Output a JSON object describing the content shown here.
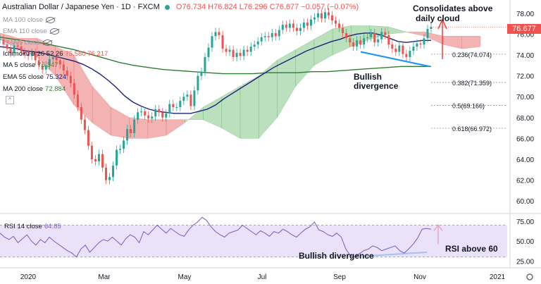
{
  "header": {
    "title": "Australian Dollar / Japanese Yen · 1D · FXCM",
    "ohlc": "O76.734 H76.824 L76.296 C76.677 −0.057 (−0.07%)"
  },
  "indicators": [
    {
      "label": "MA 100 close",
      "value": "",
      "hidden": true
    },
    {
      "label": "EMA 110 close",
      "value": "",
      "hidden": true
    },
    {
      "label": "EMA 5 close",
      "value": "",
      "hidden": true
    },
    {
      "label": "Ichimoku 9 26 52 26",
      "value": "75.580  76.217",
      "hidden": false
    },
    {
      "label": "MA 5 close",
      "value": "76.347",
      "hidden": false
    },
    {
      "label": "EMA 55 close",
      "value": "75.324",
      "hidden": false
    },
    {
      "label": "MA 200 close",
      "value": "72.884",
      "hidden": false
    }
  ],
  "price_tag": "76.677",
  "annotations": {
    "consolidates": [
      "Consolidates above",
      "daily cloud"
    ],
    "bullish_div_price": [
      "Bullish",
      "divergence"
    ],
    "bullish_div_rsi": "Bullish divergence",
    "rsi_above": "RSI above 60"
  },
  "rsi_label": {
    "name": "RSI 14 close",
    "value": "64.85"
  },
  "colors": {
    "price": "#131722",
    "up": "#26a69a",
    "down": "#ef5350",
    "ema55": "#1a237e",
    "ma200": "#2e7d32",
    "ma5": "#388e3c",
    "cloud_bull": "#a5d6a7",
    "cloud_bear": "#ef9a9a",
    "rsi": "#7e57c2",
    "rsi_band": "#e1d5f5",
    "divergence": "#2196f3",
    "arrow": "#e53935",
    "fib": "#9598a1"
  },
  "chart_data": [
    {
      "type": "line",
      "title": "Australian Dollar / Japanese Yen",
      "x_ticks": [
        "2020",
        "Mar",
        "May",
        "Jul",
        "Sep",
        "Nov",
        "2021"
      ],
      "ylim": [
        59,
        79
      ],
      "y_ticks": [
        60,
        62,
        64,
        66,
        68,
        70,
        72,
        74,
        76,
        78
      ],
      "series": [
        {
          "key": "close",
          "values": [
            75.5,
            75.0,
            74.6,
            74.2,
            74.9,
            74.8,
            74.3,
            74.1,
            73.9,
            74.2,
            73.5,
            73.0,
            72.6,
            73.0,
            73.6,
            73.8,
            73.5,
            73.1,
            72.5,
            72.0,
            71.3,
            70.2,
            69.0,
            67.8,
            66.8,
            65.3,
            64.0,
            63.8,
            64.5,
            63.2,
            62.0,
            62.3,
            63.4,
            64.9,
            65.0,
            65.8,
            66.9,
            66.5,
            67.8,
            68.5,
            68.6,
            68.2,
            67.9,
            68.1,
            68.8,
            68.5,
            68.0,
            68.4,
            69.3,
            69.0,
            69.0,
            69.6,
            70.0,
            70.2,
            69.1,
            70.6,
            72.0,
            72.4,
            73.8,
            74.7,
            75.8,
            76.2,
            75.9,
            74.6,
            74.3,
            74.5,
            73.8,
            74.2,
            73.9,
            74.5,
            74.3,
            74.8,
            75.0,
            75.3,
            75.7,
            75.8,
            75.7,
            76.1,
            75.8,
            76.4,
            76.9,
            76.6,
            77.0,
            76.6,
            76.3,
            76.6,
            77.1,
            76.8,
            77.4,
            77.6,
            78.0,
            77.5,
            78.1,
            77.8,
            77.3,
            77.0,
            76.6,
            76.1,
            75.6,
            75.2,
            74.8,
            75.4,
            75.0,
            75.6,
            75.7,
            76.1,
            75.2,
            75.5,
            76.2,
            75.9,
            75.0,
            74.6,
            74.3,
            74.9,
            74.1,
            73.8,
            74.4,
            74.8,
            75.1,
            75.0,
            75.6,
            76.5,
            76.7
          ]
        },
        {
          "key": "ema55",
          "name": "EMA 55 close",
          "values": [
            74.8,
            74.7,
            74.6,
            74.4,
            74.3,
            74.2,
            74.0,
            73.8,
            73.6,
            73.4,
            73.1,
            72.7,
            72.2,
            71.6,
            70.9,
            70.1,
            69.5,
            69.1,
            68.8,
            68.6,
            68.5,
            68.4,
            68.4,
            68.4,
            68.6,
            68.8,
            69.2,
            69.8,
            70.3,
            70.8,
            71.3,
            71.8,
            72.3,
            72.8,
            73.2,
            73.6,
            74.0,
            74.4,
            74.7,
            75.0,
            75.3,
            75.5,
            75.8,
            76.0,
            76.1,
            76.1,
            75.9,
            75.6,
            75.3,
            75.2,
            75.3,
            75.4,
            75.4
          ]
        },
        {
          "key": "ma200",
          "name": "MA 200 close",
          "values": [
            75.7,
            75.5,
            75.3,
            75.1,
            74.8,
            74.5,
            74.1,
            73.7,
            73.3,
            73.0,
            72.8,
            72.6,
            72.5,
            72.4,
            72.3,
            72.2,
            72.2,
            72.2,
            72.3,
            72.3,
            72.3,
            72.4,
            72.4,
            72.5,
            72.6,
            72.7,
            72.8,
            72.9,
            72.9,
            72.9
          ]
        }
      ],
      "ichimoku_cloud": [
        {
          "span_a": 75.5,
          "span_b": 76.1
        },
        {
          "span_a": 74.6,
          "span_b": 75.6
        },
        {
          "span_a": 73.8,
          "span_b": 75.6
        },
        {
          "span_a": 72.0,
          "span_b": 74.8
        },
        {
          "span_a": 69.2,
          "span_b": 74.0
        },
        {
          "span_a": 67.5,
          "span_b": 71.0
        },
        {
          "span_a": 66.3,
          "span_b": 69.0
        },
        {
          "span_a": 66.0,
          "span_b": 68.0
        },
        {
          "span_a": 66.0,
          "span_b": 67.8
        },
        {
          "span_a": 66.3,
          "span_b": 67.8
        },
        {
          "span_a": 67.5,
          "span_b": 67.8
        },
        {
          "span_a": 69.0,
          "span_b": 67.8
        },
        {
          "span_a": 70.0,
          "span_b": 67.0
        },
        {
          "span_a": 71.0,
          "span_b": 66.0
        },
        {
          "span_a": 72.0,
          "span_b": 66.0
        },
        {
          "span_a": 73.5,
          "span_b": 68.0
        },
        {
          "span_a": 74.5,
          "span_b": 71.0
        },
        {
          "span_a": 75.5,
          "span_b": 73.0
        },
        {
          "span_a": 76.5,
          "span_b": 74.0
        },
        {
          "span_a": 76.8,
          "span_b": 74.8
        },
        {
          "span_a": 76.8,
          "span_b": 75.5
        },
        {
          "span_a": 76.7,
          "span_b": 76.0
        },
        {
          "span_a": 76.2,
          "span_b": 76.2
        },
        {
          "span_a": 75.8,
          "span_b": 76.2
        },
        {
          "span_a": 75.0,
          "span_b": 75.8
        },
        {
          "span_a": 74.6,
          "span_b": 75.8
        },
        {
          "span_a": 74.8,
          "span_b": 75.8
        }
      ],
      "fibonacci": [
        {
          "label": "0.236(74.074)",
          "value": 74.074
        },
        {
          "label": "0.382(71.359)",
          "value": 71.359
        },
        {
          "label": "0.5(69.166)",
          "value": 69.166
        },
        {
          "label": "0.618(66.972)",
          "value": 66.972
        }
      ],
      "current_price": 76.677
    },
    {
      "type": "line",
      "title": "RSI 14 close",
      "ylim": [
        20,
        82
      ],
      "y_ticks": [
        25,
        50,
        75
      ],
      "band": [
        30,
        70
      ],
      "series": [
        {
          "key": "rsi",
          "name": "RSI 14 close",
          "values": [
            60,
            55,
            52,
            56,
            48,
            53,
            58,
            50,
            45,
            52,
            48,
            55,
            50,
            46,
            42,
            38,
            35,
            30,
            40,
            45,
            36,
            42,
            48,
            52,
            50,
            55,
            50,
            45,
            53,
            58,
            55,
            48,
            62,
            58,
            64,
            70,
            65,
            60,
            66,
            62,
            58,
            56,
            64,
            70,
            74,
            80,
            76,
            68,
            62,
            58,
            55,
            60,
            62,
            64,
            70,
            66,
            62,
            58,
            63,
            60,
            56,
            62,
            60,
            65,
            62,
            58,
            55,
            60,
            65,
            68,
            74,
            64,
            62,
            58,
            56,
            60,
            55,
            40,
            32,
            30,
            34,
            38,
            40,
            44,
            42,
            38,
            40,
            42,
            44,
            38,
            35,
            40,
            46,
            54,
            65,
            66,
            65
          ]
        }
      ]
    }
  ]
}
